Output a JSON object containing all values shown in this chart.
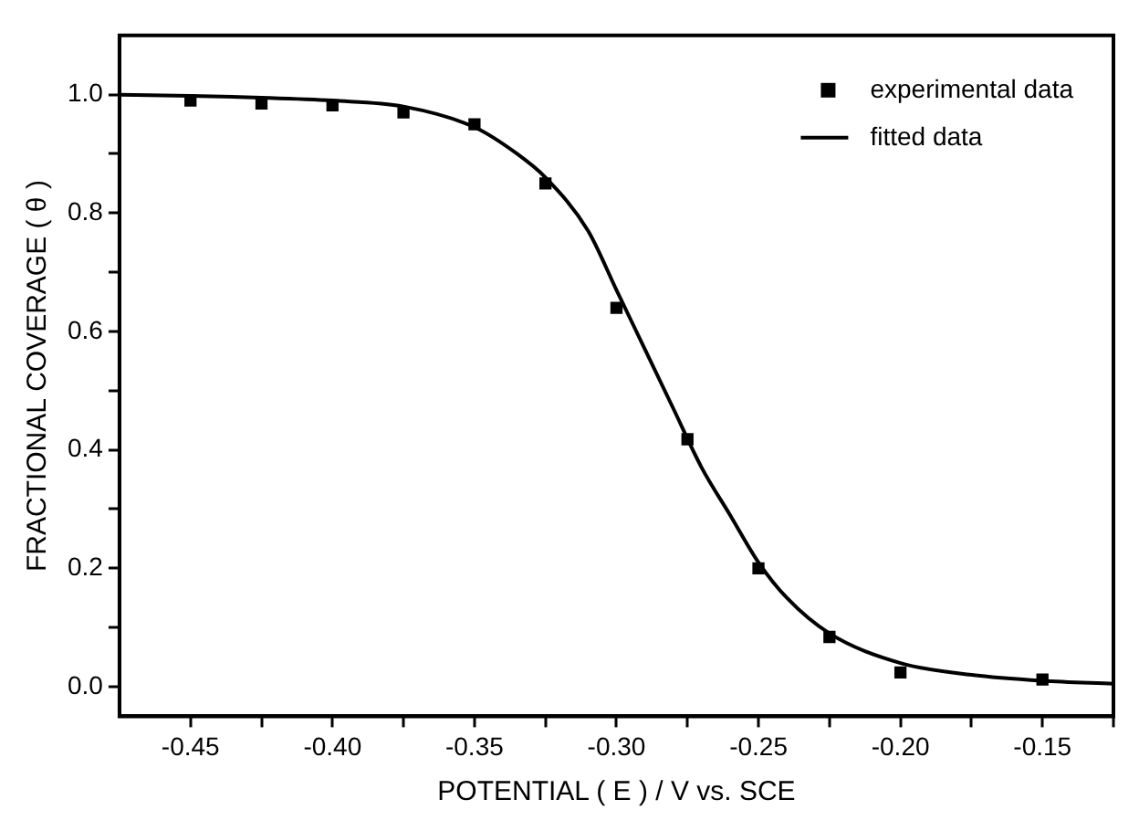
{
  "chart_data": {
    "type": "scatter",
    "xlabel": "POTENTIAL ( E ) / V vs. SCE",
    "ylabel": "FRACTIONAL COVERAGE ( θ )",
    "series": [
      {
        "name": "experimental data",
        "color": "#000000",
        "marker": "square",
        "x": [
          -0.45,
          -0.425,
          -0.4,
          -0.375,
          -0.35,
          -0.325,
          -0.3,
          -0.275,
          -0.25,
          -0.225,
          -0.2,
          -0.15
        ],
        "values": [
          0.99,
          0.985,
          0.982,
          0.97,
          0.95,
          0.85,
          0.64,
          0.418,
          0.2,
          0.084,
          0.024,
          0.012
        ]
      },
      {
        "name": "fitted data",
        "type": "line",
        "color": "#000000",
        "marker": "none",
        "line_style": "solid",
        "x": [
          -0.475,
          -0.45,
          -0.425,
          -0.4,
          -0.375,
          -0.35,
          -0.335,
          -0.325,
          -0.31,
          -0.3,
          -0.29,
          -0.28,
          -0.27,
          -0.26,
          -0.25,
          -0.24,
          -0.225,
          -0.2,
          -0.175,
          -0.15,
          -0.125
        ],
        "values": [
          1.0,
          0.998,
          0.995,
          0.99,
          0.98,
          0.945,
          0.9,
          0.86,
          0.77,
          0.67,
          0.57,
          0.47,
          0.37,
          0.29,
          0.21,
          0.15,
          0.09,
          0.04,
          0.02,
          0.01,
          0.005
        ]
      }
    ],
    "xlim": [
      -0.475,
      -0.125
    ],
    "xticks": [
      -0.45,
      {
        "value": -0.425,
        "label": null
      },
      {
        "value": -0.4,
        "label": "-0.40"
      },
      {
        "value": -0.375,
        "label": null
      },
      -0.35,
      {
        "value": -0.325,
        "label": null
      },
      {
        "value": -0.3,
        "label": "-0.30"
      },
      {
        "value": -0.275,
        "label": null
      },
      -0.25,
      {
        "value": -0.225,
        "label": null
      },
      {
        "value": -0.2,
        "label": "-0.20"
      },
      {
        "value": -0.175,
        "label": null
      },
      -0.15,
      {
        "value": -0.125,
        "label": null
      }
    ],
    "ylim": [
      -0.05,
      1.1
    ],
    "yticks": [
      {
        "value": 0,
        "label": "0.0"
      },
      {
        "value": 0.1,
        "label": null
      },
      0.2,
      {
        "value": 0.3,
        "label": null
      },
      0.4,
      {
        "value": 0.5,
        "label": null
      },
      0.6,
      {
        "value": 0.7,
        "label": null
      },
      0.8,
      {
        "value": 0.9,
        "label": null
      },
      {
        "value": 1,
        "label": "1.0"
      }
    ],
    "grid": false,
    "legend": "top right"
  }
}
